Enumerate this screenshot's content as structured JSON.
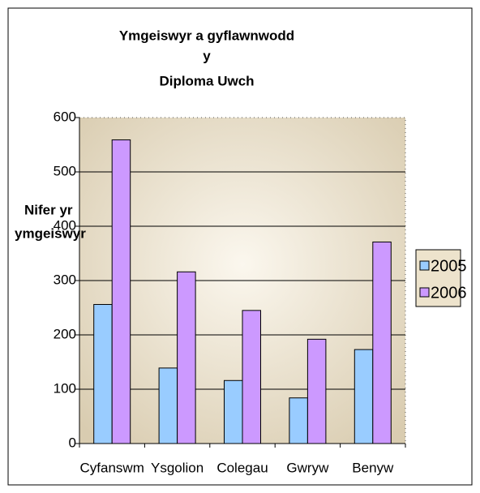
{
  "chart_data": {
    "type": "bar",
    "title": [
      "Ymgeiswyr a gyflawnwodd",
      "y",
      "Diploma Uwch"
    ],
    "y_label": [
      "Nifer yr",
      "ymgeiswyr"
    ],
    "categories": [
      "Cyfanswm",
      "Ysgolion",
      "Colegau",
      "Gwryw",
      "Benyw"
    ],
    "series": [
      {
        "name": "2005",
        "color": "#99ccff",
        "values": [
          256,
          139,
          116,
          84,
          173
        ]
      },
      {
        "name": "2006",
        "color": "#cc99ff",
        "values": [
          559,
          316,
          245,
          192,
          371
        ]
      }
    ],
    "ylim": [
      0,
      600
    ],
    "yticks": [
      0,
      100,
      200,
      300,
      400,
      500,
      600
    ],
    "grid": true,
    "legend": "right"
  }
}
